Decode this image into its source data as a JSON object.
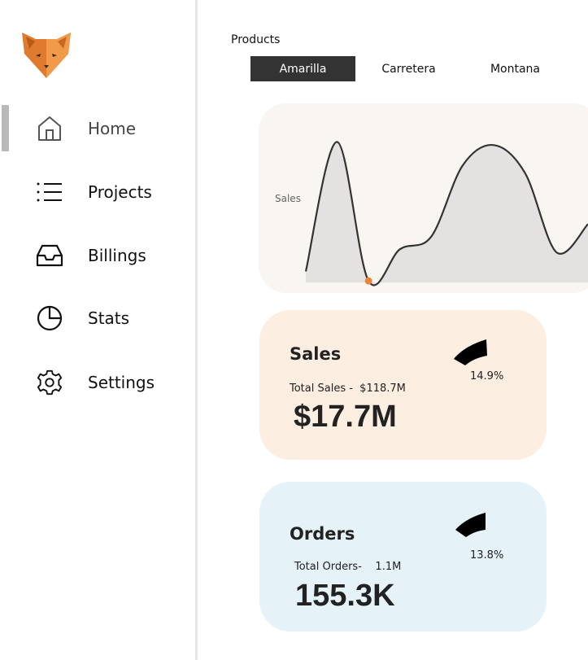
{
  "sidebar": {
    "logo_icon": "fox-logo-icon",
    "items": [
      {
        "id": "home",
        "label": "Home",
        "icon": "home-icon",
        "active": true
      },
      {
        "id": "projects",
        "label": "Projects",
        "icon": "list-icon"
      },
      {
        "id": "billings",
        "label": "Billings",
        "icon": "inbox-icon"
      },
      {
        "id": "stats",
        "label": "Stats",
        "icon": "pie-chart-icon"
      },
      {
        "id": "settings",
        "label": "Settings",
        "icon": "gear-icon"
      }
    ]
  },
  "products": {
    "title": "Products",
    "tabs": [
      {
        "label": "Amarilla",
        "selected": true
      },
      {
        "label": "Carretera"
      },
      {
        "label": "Montana"
      }
    ]
  },
  "chart_data": {
    "type": "area",
    "title": "",
    "xlabel": "",
    "ylabel": "Sales",
    "grid": false,
    "series": [
      {
        "values": [
          0.08,
          0.9,
          0.02,
          0.22,
          0.3,
          0.75,
          0.88,
          0.7,
          0.2,
          0.38
        ]
      }
    ],
    "highlight_point_index": 2,
    "colors": {
      "line": "#333333",
      "fill": "#e3e2e0",
      "marker": "#e8843a"
    }
  },
  "kpis": {
    "sales": {
      "title": "Sales",
      "total_label": "Total Sales -  $118.7M",
      "value": "$17.7M",
      "percent": "14.9%",
      "percent_value": 0.149,
      "background": "#fdeee2"
    },
    "orders": {
      "title": "Orders",
      "total_label": "Total Orders-    1.1M",
      "value": "155.3K",
      "percent": "13.8%",
      "percent_value": 0.138,
      "background": "#e5f3f9"
    }
  }
}
